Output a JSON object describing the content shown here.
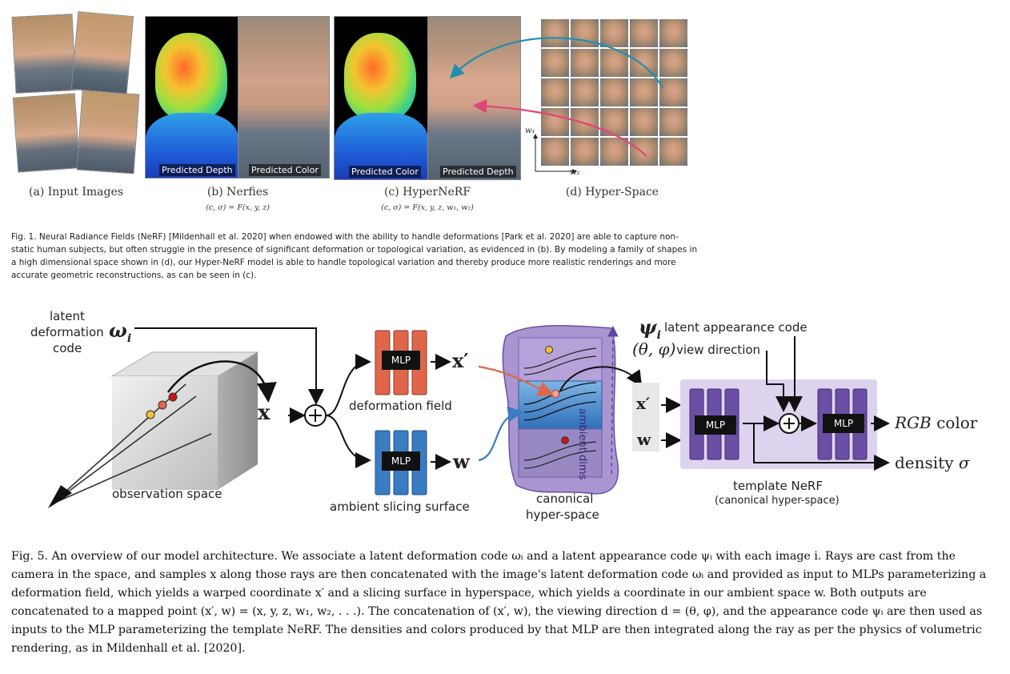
{
  "figure1": {
    "subcaptions": {
      "a": "(a) Input Images",
      "b": "(b) Nerfies",
      "c": "(c) HyperNeRF",
      "d": "(d) Hyper-Space"
    },
    "equations": {
      "b": "(c, σ) = F(x, y, z)",
      "c": "(c, σ) = F(x, y, z, w₁, w₂)"
    },
    "overlays": {
      "b_left": "Predicted Depth",
      "b_right": "Predicted Color",
      "c_left": "Predicted Color",
      "c_right": "Predicted Depth"
    },
    "axes": {
      "w1": "w₁",
      "w2": "w₂"
    },
    "caption": "Fig. 1. Neural Radiance Fields (NeRF) [Mildenhall et al. 2020] when endowed with the ability to handle deformations [Park et al. 2020] are able to capture non-static human subjects, but often struggle in the presence of significant deformation or topological variation, as evidenced in (b). By modeling a family of shapes in a high dimensional space shown in (d), our Hyper-NeRF model is able to handle topological variation and thereby produce more realistic renderings and more accurate geometric reconstructions, as can be seen in (c)."
  },
  "diagram": {
    "latent_line1": "latent",
    "latent_line2": "deformation",
    "omega": "ω",
    "omega_sub": "i",
    "latent_line3": "code",
    "x_bold": "x",
    "observation_space": "observation space",
    "mlp": "MLP",
    "deformation_field": "deformation field",
    "ambient_slicing_surface": "ambient slicing surface",
    "x_prime": "x′",
    "w": "w",
    "ambient_dims": "ambient dims",
    "canonical_line1": "canonical",
    "canonical_line2": "hyper-space",
    "psi": "ψ",
    "psi_sub": "i",
    "latent_appearance_code": "latent appearance code",
    "theta_phi": "(θ, φ)",
    "view_direction": "view direction",
    "rgb": "RGB",
    "color": "color",
    "density": "density",
    "sigma": "σ",
    "template_nerf": "template NeRF",
    "template_nerf_sub": "(canonical hyper-space)"
  },
  "fig5_caption": "Fig. 5.  An overview of our model architecture. We associate a latent deformation code ωᵢ and a latent appearance code ψᵢ with each image i. Rays are cast from the camera in the space, and samples x along those rays are then concatenated with the image's latent deformation code ωᵢ and provided as input to MLPs parameterizing a deformation field, which yields a warped coordinate x′ and a slicing surface in hyperspace, which yields a coordinate in our ambient space w. Both outputs are concatenated to a mapped point (x′, w) = (x, y, z, w₁, w₂, . . .). The concatenation of (x′, w), the viewing direction d = (θ, φ), and the appearance code ψᵢ are then used as inputs to the MLP parameterizing the template NeRF. The densities and colors produced by that MLP are then integrated along the ray as per the physics of volumetric rendering, as in Mildenhall et al. [2020].",
  "colors": {
    "deformation_mlp": "#e0664a",
    "ambient_mlp": "#3a7cc2",
    "template_mlp": "#6a4fa5",
    "hyperspace_fill": "#9a83c8",
    "template_bg": "#ddd3ee"
  }
}
